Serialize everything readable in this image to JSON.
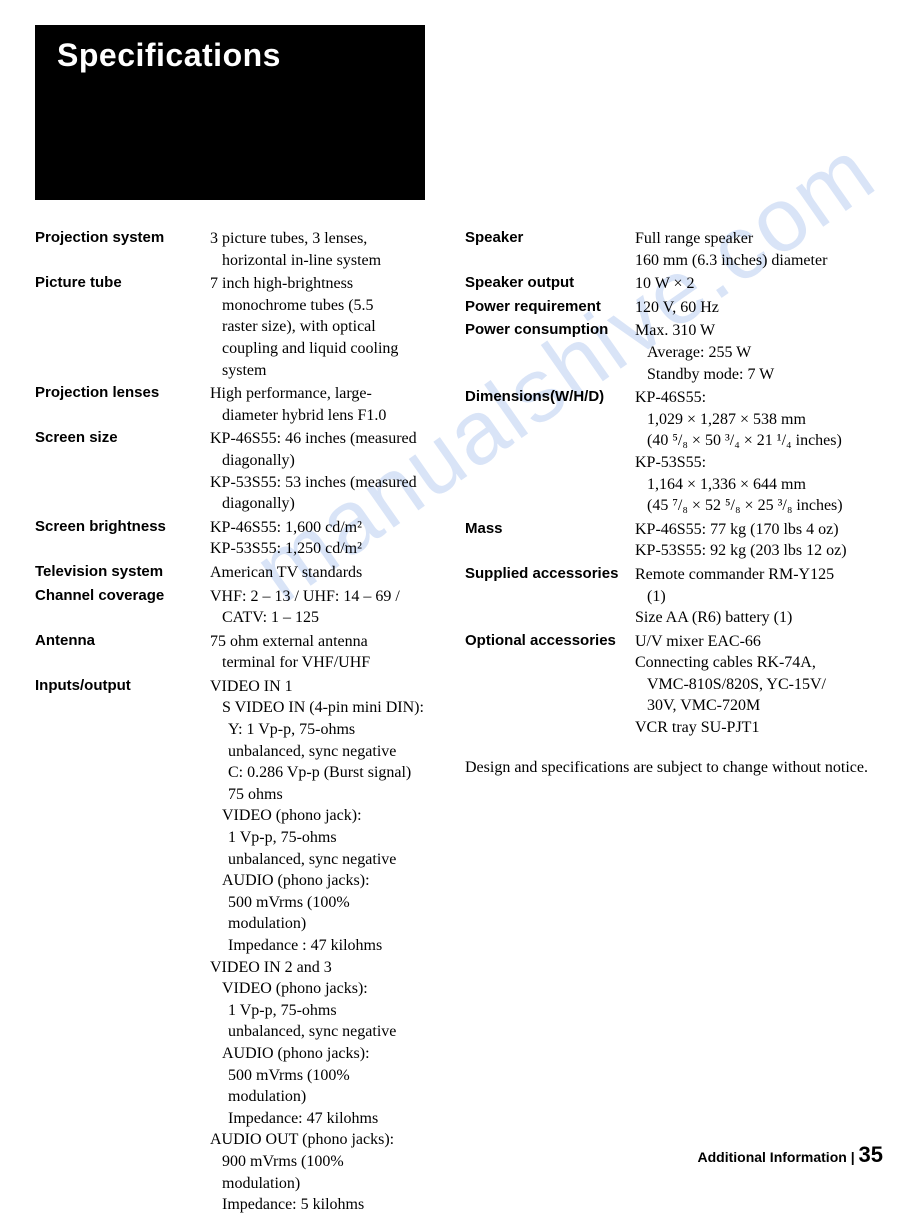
{
  "title": "Specifications",
  "left": {
    "projection_system": {
      "label": "Projection system",
      "lines": [
        "3 picture tubes, 3 lenses,",
        "horizontal in-line system"
      ],
      "indents": [
        0,
        1
      ]
    },
    "picture_tube": {
      "label": "Picture tube",
      "lines": [
        "7 inch high-brightness",
        "monochrome  tubes (5.5",
        "raster size), with optical",
        "coupling and liquid cooling",
        "system"
      ],
      "indents": [
        0,
        1,
        1,
        1,
        1
      ]
    },
    "projection_lenses": {
      "label": "Projection lenses",
      "lines": [
        "High performance, large-",
        "diameter hybrid lens F1.0"
      ],
      "indents": [
        0,
        1
      ]
    },
    "screen_size": {
      "label": "Screen size",
      "lines": [
        "KP-46S55: 46 inches (measured",
        "diagonally)",
        "KP-53S55: 53 inches (measured",
        "diagonally)"
      ],
      "indents": [
        0,
        1,
        0,
        1
      ]
    },
    "screen_brightness": {
      "label": "Screen brightness",
      "lines": [
        "KP-46S55: 1,600 cd/m²",
        "KP-53S55: 1,250 cd/m²"
      ],
      "indents": [
        0,
        0
      ]
    },
    "television_system": {
      "label": "Television system",
      "lines": [
        "American TV standards"
      ],
      "indents": [
        0
      ]
    },
    "channel_coverage": {
      "label": "Channel coverage",
      "lines": [
        "VHF: 2 – 13 / UHF: 14 – 69 /",
        "CATV: 1 – 125"
      ],
      "indents": [
        0,
        1
      ]
    },
    "antenna": {
      "label": "Antenna",
      "lines": [
        "75 ohm external antenna",
        "terminal for VHF/UHF"
      ],
      "indents": [
        0,
        1
      ]
    },
    "inputs_output": {
      "label": "Inputs/output",
      "lines": [
        "VIDEO IN 1",
        "S VIDEO IN (4-pin mini DIN):",
        "Y: 1 Vp-p, 75-ohms",
        "unbalanced, sync negative",
        "C: 0.286 Vp-p (Burst signal)",
        "75 ohms",
        "VIDEO (phono jack):",
        "1 Vp-p, 75-ohms",
        "unbalanced, sync negative",
        "AUDIO (phono jacks):",
        "500 mVrms (100%",
        "modulation)",
        "Impedance : 47 kilohms",
        "VIDEO IN 2 and 3",
        "VIDEO (phono jacks):",
        "1 Vp-p, 75-ohms",
        "unbalanced, sync negative",
        "AUDIO (phono jacks):",
        "500 mVrms (100%",
        "modulation)",
        "Impedance: 47 kilohms",
        "AUDIO OUT (phono jacks):",
        "900 mVrms (100%",
        "modulation)",
        "Impedance: 5 kilohms"
      ],
      "indents": [
        0,
        1,
        2,
        2,
        2,
        2,
        1,
        2,
        2,
        1,
        2,
        2,
        2,
        0,
        1,
        2,
        2,
        1,
        2,
        2,
        2,
        0,
        1,
        1,
        1
      ]
    }
  },
  "right": {
    "speaker": {
      "label": "Speaker",
      "lines": [
        "Full range speaker",
        "160 mm (6.3 inches) diameter"
      ],
      "indents": [
        0,
        0
      ]
    },
    "speaker_output": {
      "label": "Speaker output",
      "lines": [
        "10 W × 2"
      ],
      "indents": [
        0
      ]
    },
    "power_requirement": {
      "label": "Power requirement",
      "lines": [
        "120 V, 60 Hz"
      ],
      "indents": [
        0
      ]
    },
    "power_consumption": {
      "label": "Power consumption",
      "lines": [
        "Max. 310 W",
        "Average: 255 W",
        "Standby mode: 7 W"
      ],
      "indents": [
        0,
        1,
        1
      ]
    },
    "dimensions": {
      "label": "Dimensions(W/H/D)",
      "lines": [
        "KP-46S55:",
        "1,029 × 1,287 × 538 mm",
        "(40 ⁵/₈ × 50 ³/₄ × 21 ¹/₄ inches)",
        "KP-53S55:",
        "1,164 × 1,336 × 644 mm",
        "(45 ⁷/₈ × 52 ⁵/₈ × 25 ³/₈ inches)"
      ],
      "indents": [
        0,
        1,
        1,
        0,
        1,
        1
      ]
    },
    "mass": {
      "label": "Mass",
      "lines": [
        "KP-46S55: 77 kg (170 lbs 4 oz)",
        "KP-53S55: 92 kg (203 lbs 12 oz)"
      ],
      "indents": [
        0,
        0
      ]
    },
    "supplied": {
      "label": "Supplied accessories",
      "lines": [
        "Remote commander RM-Y125",
        "(1)",
        "Size AA (R6) battery (1)"
      ],
      "indents": [
        0,
        1,
        0
      ]
    },
    "optional": {
      "label": "Optional accessories",
      "lines": [
        "U/V mixer EAC-66",
        "Connecting cables RK-74A,",
        "VMC-810S/820S, YC-15V/",
        "30V, VMC-720M",
        "VCR tray SU-PJT1"
      ],
      "indents": [
        0,
        0,
        1,
        1,
        0
      ]
    }
  },
  "note": "Design and specifications are subject to change without notice.",
  "footer_label": "Additional Information",
  "footer_sep": " | ",
  "footer_page": "35",
  "watermark": "manualshive.com"
}
